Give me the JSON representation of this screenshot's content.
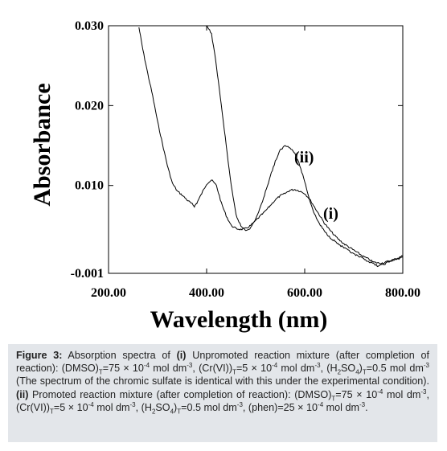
{
  "chart_data": {
    "type": "line",
    "xlabel": "Wavelength (nm)",
    "ylabel": "Absorbance",
    "xlim": [
      200,
      800
    ],
    "ylim": [
      -0.001,
      0.03
    ],
    "x_ticks": [
      200,
      400,
      600,
      800
    ],
    "x_tick_labels": [
      "200.00",
      "400.00",
      "600.00",
      "800.00"
    ],
    "y_ticks": [
      -0.001,
      0.01,
      0.02,
      0.03
    ],
    "y_tick_labels": [
      "-0.001",
      "0.010",
      "0.020",
      "0.030"
    ],
    "grid": false,
    "series": [
      {
        "name": "(i)",
        "x": [
          262,
          270,
          280,
          290,
          300,
          310,
          320,
          330,
          340,
          350,
          360,
          370,
          375,
          380,
          390,
          400,
          410,
          420,
          430,
          440,
          450,
          460,
          470,
          480,
          490,
          500,
          510,
          520,
          530,
          540,
          550,
          560,
          570,
          580,
          590,
          600,
          610,
          620,
          630,
          640,
          650,
          660,
          670,
          680,
          690,
          700,
          710,
          720,
          730,
          740,
          750,
          760,
          770,
          780,
          790,
          800
        ],
        "values": [
          0.0298,
          0.027,
          0.024,
          0.0212,
          0.018,
          0.0152,
          0.0125,
          0.0103,
          0.0093,
          0.0088,
          0.0082,
          0.0077,
          0.0074,
          0.0078,
          0.009,
          0.0102,
          0.0107,
          0.01,
          0.0078,
          0.0062,
          0.005,
          0.0046,
          0.0045,
          0.0046,
          0.005,
          0.0056,
          0.0062,
          0.0068,
          0.0075,
          0.0082,
          0.0087,
          0.009,
          0.0094,
          0.0095,
          0.0093,
          0.009,
          0.0083,
          0.0073,
          0.0063,
          0.0053,
          0.0045,
          0.0038,
          0.0032,
          0.0027,
          0.0023,
          0.0019,
          0.0015,
          0.0011,
          0.0008,
          0.0004,
          0.0003,
          0.0003,
          0.0005,
          0.0007,
          0.0009,
          0.0012
        ]
      },
      {
        "name": "(ii)",
        "x": [
          400,
          410,
          420,
          430,
          440,
          450,
          460,
          470,
          480,
          490,
          500,
          510,
          520,
          530,
          540,
          550,
          560,
          570,
          580,
          590,
          600,
          610,
          620,
          630,
          640,
          650,
          660,
          670,
          680,
          690,
          700,
          710,
          720,
          730,
          740,
          750,
          760,
          770,
          780,
          790,
          800
        ],
        "values": [
          0.03,
          0.029,
          0.025,
          0.02,
          0.015,
          0.01,
          0.0063,
          0.0049,
          0.0044,
          0.0047,
          0.0058,
          0.0073,
          0.0092,
          0.0112,
          0.013,
          0.0144,
          0.015,
          0.0148,
          0.014,
          0.0125,
          0.0105,
          0.0082,
          0.0064,
          0.0052,
          0.0043,
          0.0036,
          0.0031,
          0.0026,
          0.0022,
          0.0018,
          0.0014,
          0.0011,
          0.0008,
          0.0005,
          0.0002,
          -0.0001,
          0.0001,
          0.0004,
          0.0006,
          0.0008,
          0.0011
        ]
      }
    ],
    "annotations": [
      "(i)",
      "(ii)"
    ]
  },
  "caption": {
    "figure_label": "Figure 3:",
    "text_1": " Absorption spectra of ",
    "label_i": "(i)",
    "text_2": " Unpromoted reaction mixture (after completion of reaction): (DMSO)",
    "sub_T": "T",
    "text_3": "=75 × 10",
    "sup_m4": "-4",
    "text_4": " mol dm",
    "sup_m3": "-3",
    "text_5": ", (Cr(VI))",
    "text_6": "=5 × 10",
    "text_7": " mol dm",
    "text_8": ", (H",
    "sub_2": "2",
    "text_9": "SO",
    "sub_4": "4",
    "text_10": ")",
    "text_11": "=0.5 mol dm",
    "text_12": " (The spectrum of the chromic sulfate is identical with this under the experimental condition). ",
    "label_ii": "(ii)",
    "text_13": " Promoted reaction mixture (after completion of reaction): (DMSO)",
    "text_14": "=75 × 10",
    "text_15": " mol dm",
    "text_16": ", (Cr(VI))",
    "text_17": "=5 × 10",
    "text_18": " mol dm",
    "text_19": ", (H",
    "text_20": "SO",
    "text_21": ")",
    "text_22": "=0.5 mol dm",
    "text_23": ", (phen)=25 × 10",
    "text_24": " mol dm",
    "text_25": "."
  }
}
